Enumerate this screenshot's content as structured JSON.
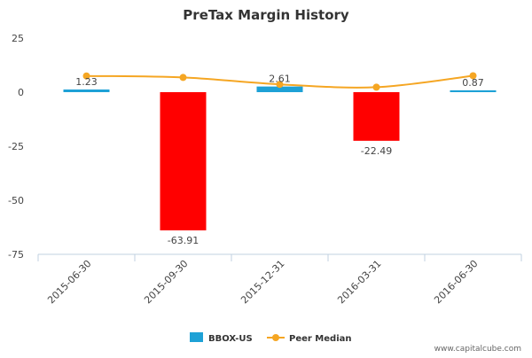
{
  "chart_data": {
    "type": "bar",
    "title": "PreTax Margin History",
    "categories": [
      "2015-06-30",
      "2015-09-30",
      "2015-12-31",
      "2016-03-31",
      "2016-06-30"
    ],
    "series": [
      {
        "name": "BBOX-US",
        "kind": "bar",
        "values": [
          1.23,
          -63.91,
          2.61,
          -22.49,
          0.87
        ],
        "labels": [
          "1.23",
          "-63.91",
          "2.61",
          "-22.49",
          "0.87"
        ],
        "color_positive": "#1ea1d6",
        "color_negative": "#ff0000"
      },
      {
        "name": "Peer Median",
        "kind": "line",
        "values": [
          7.5,
          6.8,
          3.6,
          2.3,
          7.6
        ],
        "color": "#f5a623"
      }
    ],
    "yticks": [
      25,
      0,
      -25,
      -50,
      -75
    ],
    "ylim": [
      -75,
      25
    ],
    "grid": false,
    "legend": "bottom-center",
    "credit": "www.capitalcube.com"
  }
}
